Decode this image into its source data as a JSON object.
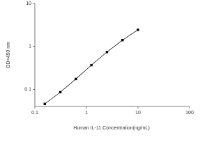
{
  "chart_data": {
    "type": "line",
    "x_label": "Human IL-11 Concentration(ng/mL)",
    "y_label": "OD=450 nm",
    "x": [
      0.156,
      0.3125,
      0.625,
      1.25,
      2.5,
      5,
      10
    ],
    "values": [
      0.046,
      0.086,
      0.175,
      0.367,
      0.74,
      1.4,
      2.44
    ],
    "color": "#000000",
    "xscale": "log",
    "yscale": "log",
    "xlim": [
      0.1,
      100
    ],
    "ylim": [
      0.04,
      10
    ],
    "xticks": [
      0.1,
      1,
      10,
      100
    ],
    "yticks": [
      0.1,
      1,
      10
    ]
  }
}
